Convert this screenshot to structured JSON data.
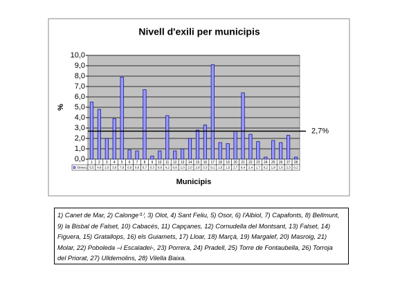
{
  "chart_data": {
    "type": "bar",
    "title": "Nivell d'exili per municipis",
    "y_label": "%",
    "x_label": "Municipis",
    "categories": [
      "1",
      "2",
      "3",
      "4",
      "5",
      "6",
      "7",
      "8",
      "9",
      "10",
      "11",
      "12",
      "13",
      "14",
      "15",
      "16",
      "17",
      "18",
      "19",
      "20",
      "21",
      "22",
      "23",
      "24",
      "25",
      "26",
      "27",
      "28"
    ],
    "series": [
      {
        "name": "Sèries1",
        "color": "#9999ff",
        "values": [
          5.5,
          4.8,
          2.0,
          3.9,
          7.9,
          0.9,
          0.8,
          6.7,
          0.3,
          0.8,
          4.2,
          0.8,
          1.0,
          2.0,
          2.8,
          3.3,
          9.1,
          1.6,
          1.5,
          2.7,
          6.4,
          2.4,
          1.7,
          0.2,
          1.8,
          1.6,
          2.3,
          0.2
        ],
        "value_labels": [
          "5,5",
          "4,8",
          "2,0",
          "3,9",
          "7,9",
          "0,9",
          "0,8",
          "6,7",
          "0,3",
          "0,8",
          "4,2",
          "0,8",
          "1,0",
          "2,0",
          "2,8",
          "3,3",
          "9,1",
          "1,6",
          "1,5",
          "2,7",
          "6,4",
          "2,4",
          "1,7",
          "0,2",
          "1,8",
          "1,6",
          "2,3",
          "0,2"
        ]
      }
    ],
    "ylim": [
      0,
      10
    ],
    "yticks": [
      {
        "value": 0,
        "label": "0,0"
      },
      {
        "value": 1,
        "label": "1,0"
      },
      {
        "value": 2,
        "label": "2,0"
      },
      {
        "value": 3,
        "label": "3,0"
      },
      {
        "value": 4,
        "label": "4,0"
      },
      {
        "value": 5,
        "label": "5,0"
      },
      {
        "value": 6,
        "label": "6,0"
      },
      {
        "value": 7,
        "label": "7,0"
      },
      {
        "value": 8,
        "label": "8,0"
      },
      {
        "value": 9,
        "label": "9,0"
      },
      {
        "value": 10,
        "label": "10,0"
      }
    ],
    "grid": true,
    "plot_background": "#c0c0c0",
    "reference_line": {
      "value": 2.7,
      "label": "2,7%"
    }
  },
  "note": {
    "lines": [
      "1) Canet de Mar, 2) Calonge⁽¹⁾, 3) Olot, 4) Sant Feliu, 5) Osor, 6) l'Albiol, 7) Capafonts, 8) Bellmunt,",
      "9) la Bisbal de Falset, 10) Cabacés, 11) Capçanes, 12) Cornudella del Montsant, 13) Falset, 14)",
      "Figuera, 15) Gratallops, 16) els Guiamets, 17) Lloar, 18) Marçà, 19) Margalef, 20) Masroig, 21)",
      "Molar, 22) Poboleda –i Escaladei-, 23) Porrera, 24) Pradell, 25) Torre de Fontaubella, 26) Torroja",
      "del Priorat, 27) Ulldemolins, 28) Vilella Baixa."
    ]
  }
}
